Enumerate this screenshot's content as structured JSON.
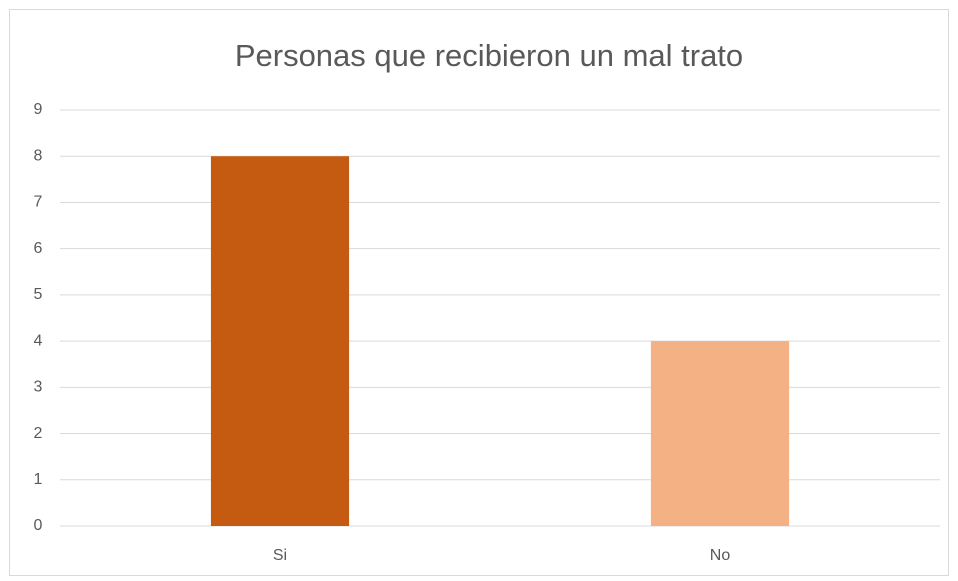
{
  "chart_data": {
    "type": "bar",
    "title": "Personas que recibieron un mal trato",
    "categories": [
      "Si",
      "No"
    ],
    "values": [
      8,
      4
    ],
    "colors": [
      "#c55a11",
      "#f4b183"
    ],
    "ylim": [
      0,
      9
    ],
    "yticks": [
      0,
      1,
      2,
      3,
      4,
      5,
      6,
      7,
      8,
      9
    ],
    "grid": true
  }
}
